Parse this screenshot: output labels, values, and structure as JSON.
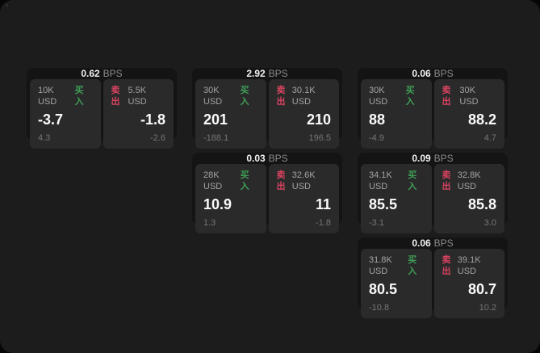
{
  "labels": {
    "bps": "BPS",
    "buy": "买入",
    "sell": "卖出"
  },
  "colors": {
    "surface_bg": "#1c1c1d",
    "card_bg": "#141414",
    "tile_bg": "#2a2a2b",
    "buy_green": "#3f9e55",
    "sell_red": "#d8435f"
  },
  "cards": [
    {
      "spread": "0.62",
      "buy_size": "10K USD",
      "buy_price": "-3.7",
      "buy_change": "4.3",
      "sell_size": "5.5K USD",
      "sell_price": "-1.8",
      "sell_change": "-2.6"
    },
    {
      "spread": "2.92",
      "buy_size": "30K USD",
      "buy_price": "201",
      "buy_change": "-188.1",
      "sell_size": "30.1K USD",
      "sell_price": "210",
      "sell_change": "196.5"
    },
    {
      "spread": "0.06",
      "buy_size": "30K USD",
      "buy_price": "88",
      "buy_change": "-4.9",
      "sell_size": "30K USD",
      "sell_price": "88.2",
      "sell_change": "4.7"
    },
    {
      "spread": "0.03",
      "buy_size": "28K USD",
      "buy_price": "10.9",
      "buy_change": "1.3",
      "sell_size": "32.6K USD",
      "sell_price": "11",
      "sell_change": "-1.8"
    },
    {
      "spread": "0.09",
      "buy_size": "34.1K USD",
      "buy_price": "85.5",
      "buy_change": "-3.1",
      "sell_size": "32.8K USD",
      "sell_price": "85.8",
      "sell_change": "3.0"
    },
    {
      "spread": "0.06",
      "buy_size": "31.8K USD",
      "buy_price": "80.5",
      "buy_change": "-10.8",
      "sell_size": "39.1K USD",
      "sell_price": "80.7",
      "sell_change": "10.2"
    }
  ]
}
